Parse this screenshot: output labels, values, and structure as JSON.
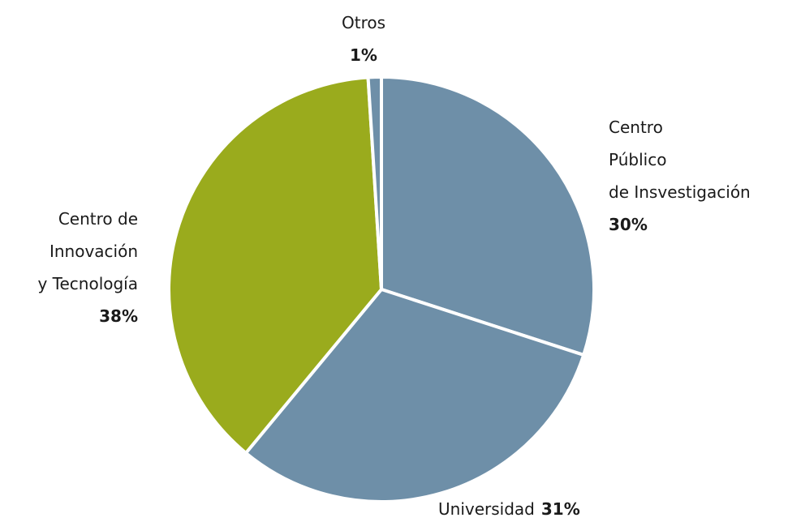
{
  "chart_data": {
    "type": "pie",
    "categories": [
      "Centro\nPúblico\nde Insvestigación",
      "Universidad",
      "Centro de\nInnovación\ny Tecnología",
      "Otros"
    ],
    "values": [
      30,
      31,
      38,
      1
    ],
    "value_labels": [
      "30%",
      "31%",
      "38%",
      "1%"
    ],
    "colors": [
      "#6e8fa8",
      "#6e8fa8",
      "#9aab1d",
      "#6e8fa8"
    ]
  }
}
